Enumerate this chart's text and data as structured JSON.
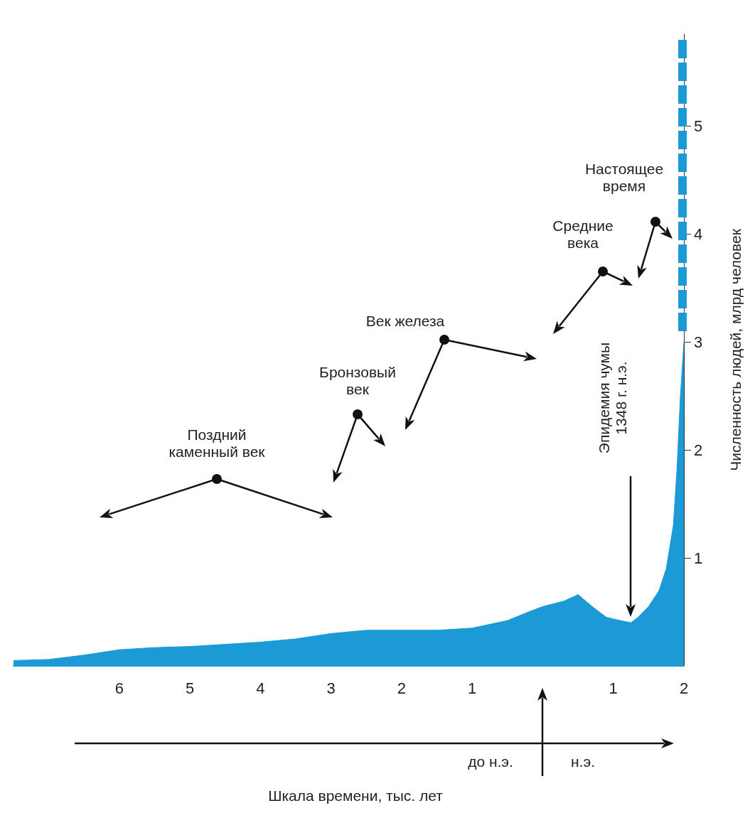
{
  "chart_data": {
    "type": "area",
    "ylabel": "Численность людей, млрд человек",
    "xlim": [
      -7.5,
      2
    ],
    "xticks": [
      {
        "value": -6,
        "label": "6"
      },
      {
        "value": -5,
        "label": "5"
      },
      {
        "value": -4,
        "label": "4"
      },
      {
        "value": -3,
        "label": "3"
      },
      {
        "value": -2,
        "label": "2"
      },
      {
        "value": -1,
        "label": "1"
      },
      1,
      2
    ],
    "ylim": [
      0,
      5.85
    ],
    "yticks": [
      1,
      2,
      3,
      4,
      5
    ],
    "grid": false,
    "marker": "none",
    "series": [
      {
        "color": "#1b9ad6",
        "x": [
          -7.5,
          -7,
          -6.5,
          -6,
          -5.5,
          -5,
          -4.5,
          -4,
          -3.5,
          -3,
          -2.5,
          -2,
          -1.5,
          -1,
          -0.5,
          -0.2,
          0,
          0.3,
          0.5,
          0.7,
          0.9,
          1.1,
          1.25,
          1.35,
          1.5,
          1.65,
          1.75,
          1.85,
          1.9,
          1.95,
          2
        ],
        "values": [
          0.05,
          0.06,
          0.1,
          0.15,
          0.17,
          0.18,
          0.2,
          0.22,
          0.25,
          0.3,
          0.33,
          0.33,
          0.33,
          0.35,
          0.42,
          0.5,
          0.55,
          0.6,
          0.66,
          0.55,
          0.45,
          0.42,
          0.4,
          0.45,
          0.55,
          0.7,
          0.9,
          1.3,
          1.8,
          2.5,
          3
        ]
      },
      {
        "type": "line",
        "color": "#1b9ad6",
        "line_style": "dashed",
        "x": [
          1.98,
          1.98
        ],
        "values": [
          3.1,
          5.8
        ]
      }
    ],
    "annotations": [
      "Поздний каменный век",
      "Бронзовый век",
      "Век железа",
      "Средние века",
      "Настоящее время",
      "Эпидемия чумы 1348 г. н.э.",
      "до н.э.",
      "н.э.",
      "Шкала времени, тыс. лет"
    ]
  }
}
